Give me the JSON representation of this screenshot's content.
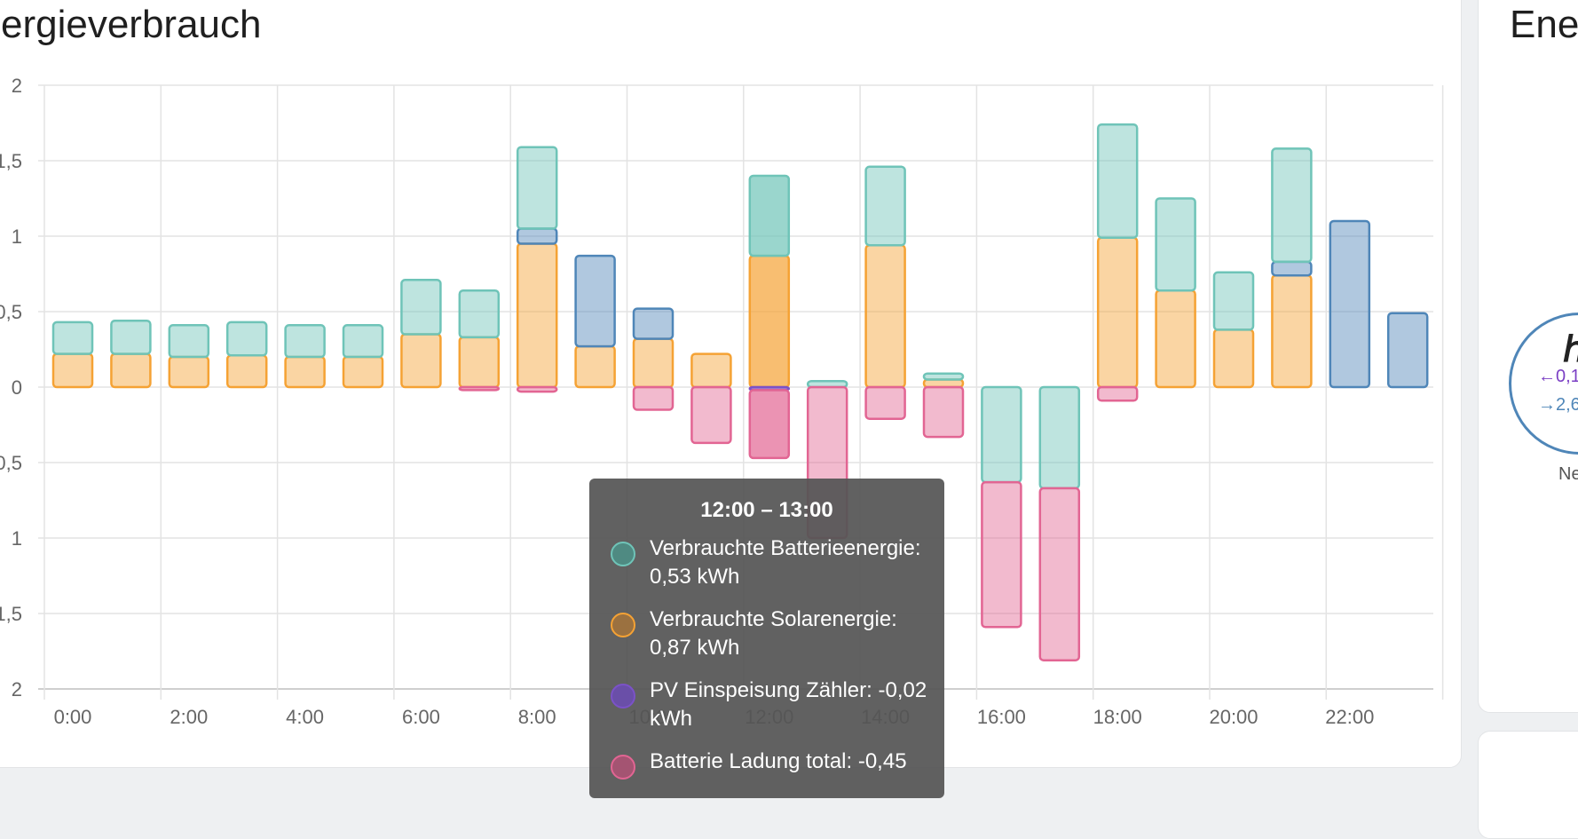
{
  "card": {
    "title": "ergieverbrauch"
  },
  "right_card": {
    "title": "Ene",
    "icon": "transmission-tower-icon",
    "value_in": "←0,1",
    "value_out": "→2,6",
    "label": "Ne"
  },
  "colors": {
    "battery_consumed": "#6fc4b8",
    "solar": "#f5a234",
    "grid": "#4f86b8",
    "pv_feed": "#7b52c8",
    "battery_charge": "#e26593"
  },
  "chart_data": {
    "type": "bar",
    "stacked": true,
    "unit": "kWh",
    "x": [
      "0:00",
      "1:00",
      "2:00",
      "3:00",
      "4:00",
      "5:00",
      "6:00",
      "7:00",
      "8:00",
      "9:00",
      "10:00",
      "11:00",
      "12:00",
      "13:00",
      "14:00",
      "15:00",
      "16:00",
      "17:00",
      "18:00",
      "19:00",
      "20:00",
      "21:00",
      "22:00",
      "23:00"
    ],
    "x_tick_labels": [
      "0:00",
      "2:00",
      "4:00",
      "6:00",
      "8:00",
      "10:00",
      "12:00",
      "14:00",
      "16:00",
      "18:00",
      "20:00",
      "22:00"
    ],
    "y_tick_labels": [
      "2",
      "1,5",
      "1",
      "0,5",
      "0",
      "0,5",
      "1",
      "1,5",
      "2"
    ],
    "ylim": [
      -2,
      2
    ],
    "grid": true,
    "series": [
      {
        "name": "Verbrauchte Solarenergie",
        "color_key": "solar",
        "values": [
          0.22,
          0.22,
          0.2,
          0.21,
          0.2,
          0.2,
          0.35,
          0.33,
          0.95,
          0.27,
          0.32,
          0.22,
          0.87,
          0,
          0.94,
          0.05,
          0,
          0,
          0.99,
          0.64,
          0.38,
          0.74,
          0,
          0
        ]
      },
      {
        "name": "Netz",
        "color_key": "grid",
        "values": [
          0,
          0,
          0,
          0,
          0,
          0,
          0,
          0,
          0.1,
          0.6,
          0.2,
          0,
          0,
          0,
          0,
          0,
          0,
          0,
          0,
          0,
          0,
          0.09,
          1.1,
          0.49
        ]
      },
      {
        "name": "Verbrauchte Batterieenergie",
        "color_key": "battery_consumed",
        "values": [
          0.21,
          0.22,
          0.21,
          0.22,
          0.21,
          0.21,
          0.36,
          0.31,
          0.54,
          0,
          0,
          0,
          0.53,
          0.04,
          0.52,
          0.04,
          -0.63,
          -0.67,
          0.75,
          0.61,
          0.38,
          0.75,
          0,
          0
        ]
      },
      {
        "name": "PV Einspeisung Zähler",
        "color_key": "pv_feed",
        "values": [
          0,
          0,
          0,
          0,
          0,
          0,
          0,
          0,
          0,
          0,
          0,
          0,
          -0.02,
          0,
          0,
          0,
          0,
          0,
          0,
          0,
          0,
          0,
          0,
          0
        ]
      },
      {
        "name": "Batterie Ladung total",
        "color_key": "battery_charge",
        "values": [
          0,
          0,
          0,
          0,
          0,
          0,
          0,
          -0.02,
          -0.03,
          0,
          -0.15,
          -0.37,
          -0.45,
          -1.0,
          -0.21,
          -0.33,
          -0.96,
          -1.14,
          -0.09,
          0,
          0,
          0,
          0,
          0
        ]
      }
    ]
  },
  "tooltip": {
    "title": "12:00 – 13:00",
    "items": [
      {
        "line1": "Verbrauchte Batterieenergie:",
        "line2": "0,53 kWh",
        "color_key": "battery_consumed"
      },
      {
        "line1": "Verbrauchte Solarenergie:",
        "line2": "0,87 kWh",
        "color_key": "solar"
      },
      {
        "line1": "PV Einspeisung Zähler: -0,02",
        "line2": "kWh",
        "color_key": "pv_feed"
      },
      {
        "line1": "Batterie Ladung total: -0,45",
        "line2": "",
        "color_key": "battery_charge"
      }
    ]
  }
}
